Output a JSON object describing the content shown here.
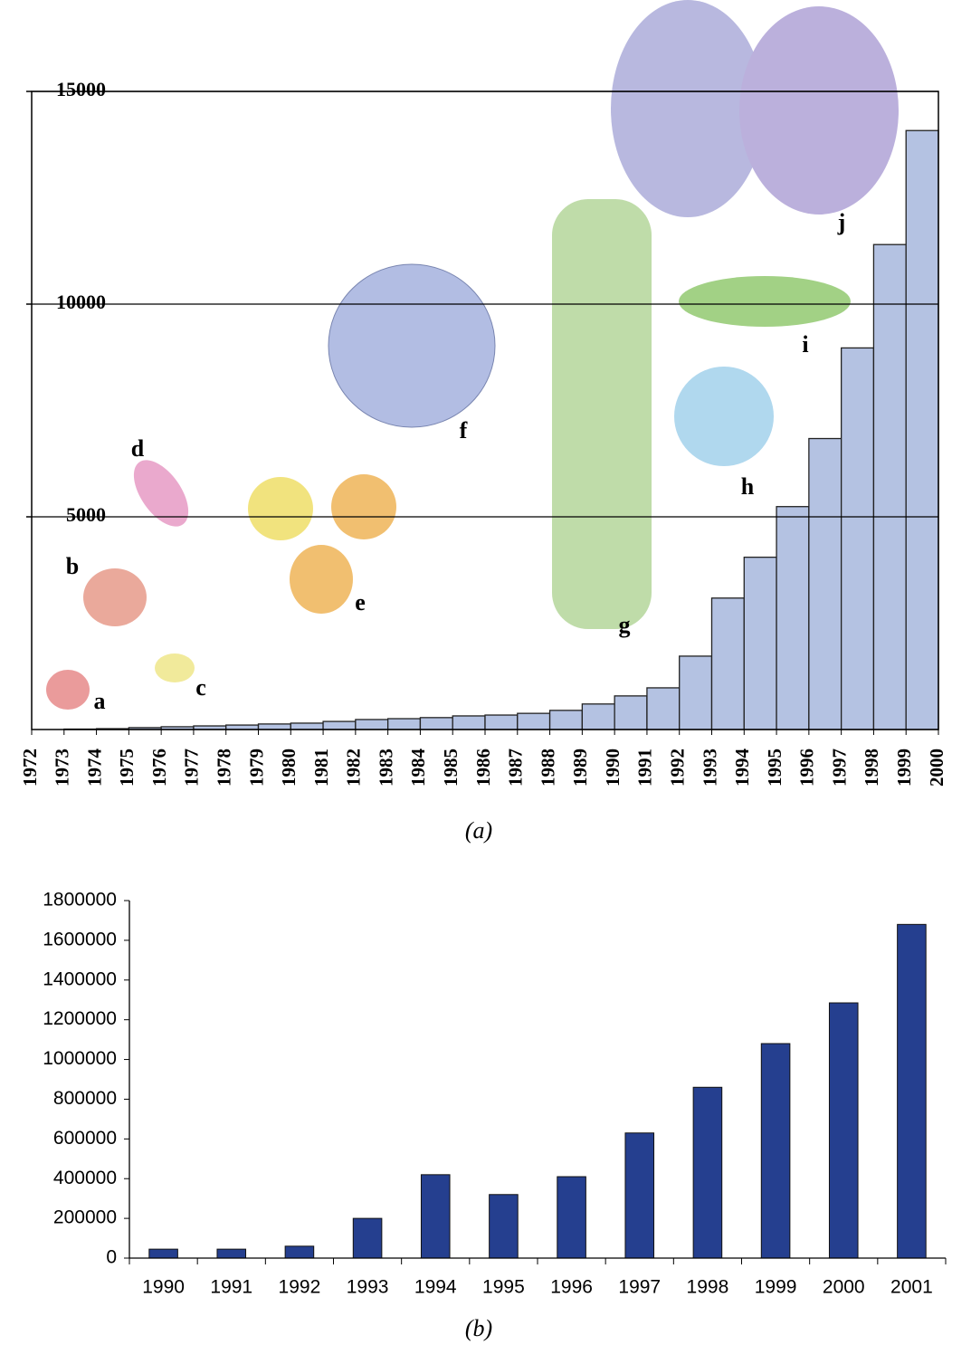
{
  "chart_data": [
    {
      "type": "histogram",
      "caption": "(a)",
      "bins": [
        1972,
        1973,
        1974,
        1975,
        1976,
        1977,
        1978,
        1979,
        1980,
        1981,
        1982,
        1983,
        1984,
        1985,
        1986,
        1987,
        1988,
        1989,
        1990,
        1991,
        1992,
        1993,
        1994,
        1995,
        1996,
        1997,
        1998,
        1999,
        2000
      ],
      "values": [
        0,
        10,
        20,
        45,
        65,
        85,
        105,
        130,
        150,
        190,
        235,
        255,
        280,
        320,
        340,
        380,
        450,
        600,
        790,
        980,
        1725,
        3090,
        4050,
        5240,
        6840,
        8970,
        11400,
        14080
      ],
      "color": "#b4c2e2",
      "xlim": [
        1972,
        2000
      ],
      "ylim": [
        0,
        15000
      ],
      "yticks": [
        5000,
        10000,
        15000
      ],
      "grid": true,
      "annotations": [
        "a",
        "b",
        "c",
        "d",
        "e",
        "f",
        "g",
        "h",
        "i",
        "j"
      ]
    },
    {
      "type": "bar",
      "caption": "(b)",
      "categories": [
        "1990",
        "1991",
        "1992",
        "1993",
        "1994",
        "1995",
        "1996",
        "1997",
        "1998",
        "1999",
        "2000",
        "2001"
      ],
      "values": [
        45000,
        45000,
        60000,
        200000,
        420000,
        320000,
        410000,
        630000,
        860000,
        1080000,
        1285000,
        1680000
      ],
      "color": "#253f8f",
      "ylim": [
        0,
        1800000
      ],
      "yticks": [
        0,
        200000,
        400000,
        600000,
        800000,
        1000000,
        1200000,
        1400000,
        1600000,
        1800000
      ],
      "grid": false
    }
  ]
}
